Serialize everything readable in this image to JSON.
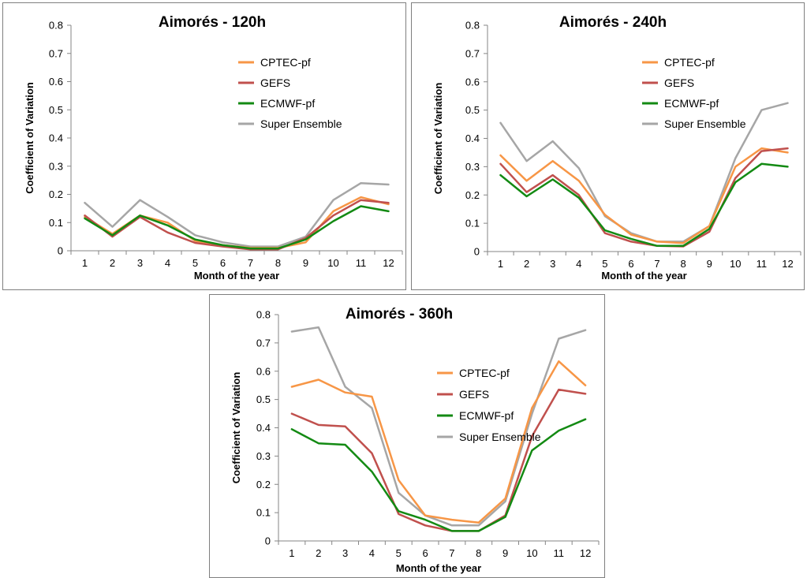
{
  "colors": {
    "CPTEC-pf": "#f79646",
    "GEFS": "#c0504d",
    "ECMWF-pf": "#138a13",
    "Super Ensemble": "#a6a6a6"
  },
  "chart_data": [
    {
      "type": "line",
      "title": "Aimorés  - 120h",
      "xlabel": "Month of the year",
      "ylabel": "Coefficient of Variation",
      "ylim": [
        0,
        0.8
      ],
      "yticks": [
        "0",
        "0.1",
        "0.2",
        "0.3",
        "0.4",
        "0.5",
        "0.6",
        "0.7",
        "0.8"
      ],
      "categories": [
        "1",
        "2",
        "3",
        "4",
        "5",
        "6",
        "7",
        "8",
        "9",
        "10",
        "11",
        "12"
      ],
      "legend_position": "top-right",
      "grid": false,
      "series": [
        {
          "name": "CPTEC-pf",
          "values": [
            0.12,
            0.06,
            0.125,
            0.1,
            0.035,
            0.02,
            0.01,
            0.01,
            0.03,
            0.14,
            0.19,
            0.165
          ]
        },
        {
          "name": "GEFS",
          "values": [
            0.125,
            0.05,
            0.12,
            0.065,
            0.028,
            0.015,
            0.005,
            0.005,
            0.045,
            0.125,
            0.18,
            0.17
          ]
        },
        {
          "name": "ECMWF-pf",
          "values": [
            0.115,
            0.055,
            0.125,
            0.09,
            0.04,
            0.02,
            0.008,
            0.008,
            0.04,
            0.105,
            0.158,
            0.14
          ]
        },
        {
          "name": "Super Ensemble",
          "values": [
            0.17,
            0.085,
            0.18,
            0.12,
            0.055,
            0.03,
            0.015,
            0.015,
            0.05,
            0.18,
            0.24,
            0.235
          ]
        }
      ]
    },
    {
      "type": "line",
      "title": "Aimorés  - 240h",
      "xlabel": "Month of the year",
      "ylabel": "Coefficient of Variation",
      "ylim": [
        0,
        0.8
      ],
      "yticks": [
        "0",
        "0.1",
        "0.2",
        "0.3",
        "0.4",
        "0.5",
        "0.6",
        "0.7",
        "0.8"
      ],
      "categories": [
        "1",
        "2",
        "3",
        "4",
        "5",
        "6",
        "7",
        "8",
        "9",
        "10",
        "11",
        "12"
      ],
      "legend_position": "top-right",
      "grid": false,
      "series": [
        {
          "name": "CPTEC-pf",
          "values": [
            0.34,
            0.25,
            0.32,
            0.25,
            0.13,
            0.06,
            0.035,
            0.03,
            0.09,
            0.3,
            0.365,
            0.35
          ]
        },
        {
          "name": "GEFS",
          "values": [
            0.31,
            0.21,
            0.27,
            0.2,
            0.065,
            0.035,
            0.02,
            0.018,
            0.07,
            0.26,
            0.355,
            0.365
          ]
        },
        {
          "name": "ECMWF-pf",
          "values": [
            0.27,
            0.195,
            0.255,
            0.19,
            0.075,
            0.045,
            0.02,
            0.02,
            0.08,
            0.245,
            0.31,
            0.3
          ]
        },
        {
          "name": "Super Ensemble",
          "values": [
            0.455,
            0.32,
            0.39,
            0.295,
            0.125,
            0.065,
            0.035,
            0.035,
            0.09,
            0.33,
            0.5,
            0.525
          ]
        }
      ]
    },
    {
      "type": "line",
      "title": "Aimorés  - 360h",
      "xlabel": "Month of the year",
      "ylabel": "Coefficient of Variation",
      "ylim": [
        0,
        0.8
      ],
      "yticks": [
        "0",
        "0.1",
        "0.2",
        "0.3",
        "0.4",
        "0.5",
        "0.6",
        "0.7",
        "0.8"
      ],
      "categories": [
        "1",
        "2",
        "3",
        "4",
        "5",
        "6",
        "7",
        "8",
        "9",
        "10",
        "11",
        "12"
      ],
      "legend_position": "top-right",
      "grid": false,
      "series": [
        {
          "name": "CPTEC-pf",
          "values": [
            0.545,
            0.57,
            0.525,
            0.51,
            0.215,
            0.09,
            0.075,
            0.065,
            0.15,
            0.47,
            0.635,
            0.55
          ]
        },
        {
          "name": "GEFS",
          "values": [
            0.45,
            0.41,
            0.405,
            0.31,
            0.095,
            0.055,
            0.035,
            0.035,
            0.09,
            0.37,
            0.535,
            0.52
          ]
        },
        {
          "name": "ECMWF-pf",
          "values": [
            0.395,
            0.345,
            0.34,
            0.245,
            0.105,
            0.075,
            0.035,
            0.035,
            0.085,
            0.32,
            0.39,
            0.43
          ]
        },
        {
          "name": "Super Ensemble",
          "values": [
            0.74,
            0.755,
            0.545,
            0.47,
            0.17,
            0.09,
            0.055,
            0.055,
            0.14,
            0.45,
            0.715,
            0.745
          ]
        }
      ]
    }
  ]
}
